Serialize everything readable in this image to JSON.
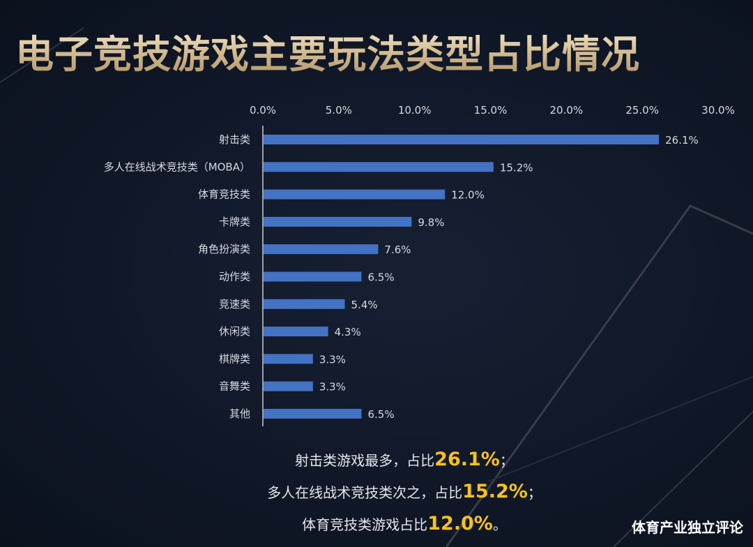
{
  "title": "电子竞技游戏主要玩法类型占比情况",
  "chart_data": {
    "type": "bar",
    "orientation": "horizontal",
    "categories": [
      "射击类",
      "多人在线战术竞技类（MOBA）",
      "体育竞技类",
      "卡牌类",
      "角色扮演类",
      "动作类",
      "竞速类",
      "休闲类",
      "棋牌类",
      "音舞类",
      "其他"
    ],
    "values": [
      26.1,
      15.2,
      12.0,
      9.8,
      7.6,
      6.5,
      5.4,
      4.3,
      3.3,
      3.3,
      6.5
    ],
    "value_labels": [
      "26.1%",
      "15.2%",
      "12.0%",
      "9.8%",
      "7.6%",
      "6.5%",
      "5.4%",
      "4.3%",
      "3.3%",
      "3.3%",
      "6.5%"
    ],
    "x_ticks": [
      0,
      5,
      10,
      15,
      20,
      25,
      30
    ],
    "x_tick_labels": [
      "0.0%",
      "5.0%",
      "10.0%",
      "15.0%",
      "20.0%",
      "25.0%",
      "30.0%"
    ],
    "xlim": [
      0,
      30
    ],
    "axis_position": "top",
    "grid": false,
    "bar_color": "#4472c4"
  },
  "summary": {
    "line1_text": "射击类游戏最多，占比",
    "line1_value": "26.1%",
    "line1_end": "；",
    "line2_text": "多人在线战术竞技类次之，占比",
    "line2_value": "15.2%",
    "line2_end": "；",
    "line3_text": "体育竞技类游戏占比",
    "line3_value": "12.0%",
    "line3_end": "。"
  },
  "watermark": "体育产业独立评论",
  "colors": {
    "background": "#0f1626",
    "title_gold": "#d9c49c",
    "highlight": "#f7c21a",
    "bar": "#4472c4"
  }
}
